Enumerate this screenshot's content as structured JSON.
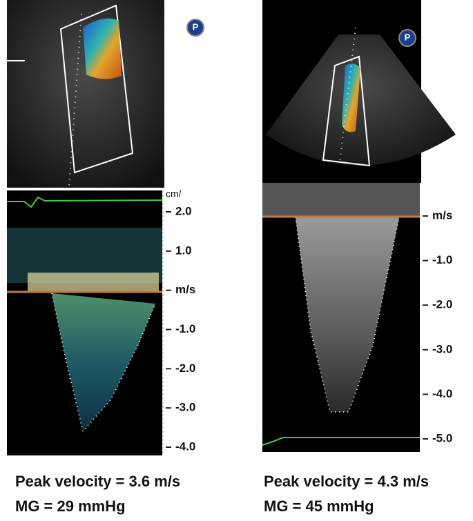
{
  "panels": [
    {
      "icon": "P",
      "unit_label": "cm/",
      "scale_labels": [
        "2.0",
        "1.0",
        "m/s",
        "-1.0",
        "-2.0",
        "-3.0",
        "-4.0"
      ],
      "caption": [
        "Peak velocity = 3.6 m/s",
        "MG = 29 mmHg"
      ]
    },
    {
      "icon": "P",
      "scale_labels": [
        "m/s",
        "-1.0",
        "-2.0",
        "-3.0",
        "-4.0",
        "-5.0"
      ],
      "caption": [
        "Peak velocity = 4.3 m/s",
        "MG = 45 mmHg"
      ]
    }
  ]
}
